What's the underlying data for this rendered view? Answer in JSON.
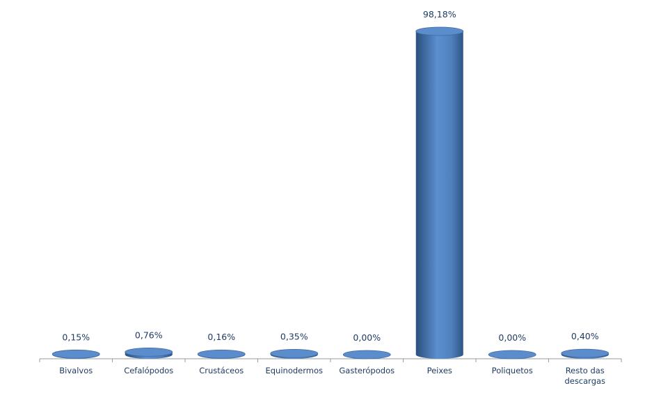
{
  "chart_data": {
    "type": "bar",
    "categories": [
      "Bivalvos",
      "Cefalópodos",
      "Crustáceos",
      "Equinodermos",
      "Gasterópodos",
      "Peixes",
      "Poliquetos",
      "Resto das descargas"
    ],
    "values": [
      0.15,
      0.76,
      0.16,
      0.35,
      0,
      98.18,
      0,
      0.4
    ],
    "value_labels": [
      "0,15%",
      "0,76%",
      "0,16%",
      "0,35%",
      "0,00%",
      "98,18%",
      "0,00%",
      "0,40%"
    ],
    "color": "#4f81bd"
  }
}
